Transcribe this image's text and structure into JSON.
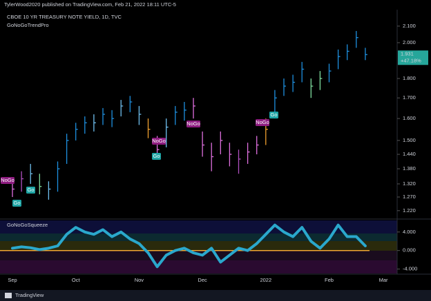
{
  "header": {
    "publisher": "TylerWood2020 published on TradingView.com, Feb 21, 2022 18:11 UTC-5",
    "footer": "TradingView"
  },
  "annotations": [
    "NoGo",
    "Go",
    "Go",
    "NoGo",
    "Go",
    "NoGo",
    "NoGo",
    "Go"
  ],
  "chart_data": [
    {
      "type": "ohlc",
      "title": "CBOE 10 YR TREASURY NOTE YIELD, 1D, TVC",
      "subtitle": "GoNoGoTrendPro",
      "categories": [
        "Sep",
        null,
        null,
        null,
        null,
        null,
        null,
        "Oct",
        null,
        null,
        null,
        null,
        null,
        null,
        "Nov",
        null,
        null,
        null,
        null,
        null,
        null,
        "Dec",
        null,
        null,
        null,
        null,
        null,
        null,
        "2022",
        null,
        null,
        null,
        null,
        null,
        null,
        "Feb",
        null,
        null,
        null,
        null,
        null,
        "Mar"
      ],
      "high": [
        1.34,
        1.37,
        1.4,
        1.36,
        1.33,
        1.41,
        1.53,
        1.58,
        1.61,
        1.62,
        1.65,
        1.64,
        1.69,
        1.71,
        1.66,
        1.6,
        1.52,
        1.6,
        1.66,
        1.68,
        1.7,
        1.54,
        1.49,
        1.54,
        1.49,
        1.46,
        1.49,
        1.52,
        1.6,
        1.74,
        1.8,
        1.82,
        1.89,
        1.8,
        1.84,
        1.88,
        1.96,
        1.99,
        2.07,
        1.97,
        null,
        null
      ],
      "low": [
        1.27,
        1.29,
        1.32,
        1.28,
        1.26,
        1.29,
        1.4,
        1.5,
        1.53,
        1.54,
        1.57,
        1.56,
        1.61,
        1.63,
        1.57,
        1.51,
        1.42,
        1.47,
        1.57,
        1.59,
        1.6,
        1.43,
        1.37,
        1.44,
        1.39,
        1.36,
        1.4,
        1.44,
        1.48,
        1.6,
        1.71,
        1.73,
        1.78,
        1.7,
        1.74,
        1.78,
        1.85,
        1.9,
        1.97,
        1.9,
        null,
        null
      ],
      "close": [
        1.3,
        1.34,
        1.36,
        1.31,
        1.3,
        1.38,
        1.5,
        1.55,
        1.58,
        1.58,
        1.62,
        1.6,
        1.66,
        1.68,
        1.62,
        1.55,
        1.46,
        1.56,
        1.63,
        1.64,
        1.66,
        1.48,
        1.43,
        1.5,
        1.44,
        1.42,
        1.45,
        1.48,
        1.55,
        1.7,
        1.76,
        1.78,
        1.85,
        1.76,
        1.8,
        1.84,
        1.92,
        1.95,
        2.03,
        1.931,
        null,
        null
      ],
      "bar_colors": [
        "#e070e0",
        "#b050c0",
        "#70c0f0",
        "#80e0a0",
        "#70c0f0",
        "#1e90e0",
        "#1e90e0",
        "#1e90e0",
        "#1e90e0",
        "#70c0f0",
        "#1e90e0",
        "#1e90e0",
        "#70c0f0",
        "#1e90e0",
        "#70c0f0",
        "#f0a030",
        "#e070e0",
        "#70c0f0",
        "#1e90e0",
        "#1e90e0",
        "#e070e0",
        "#e070e0",
        "#e070e0",
        "#e070e0",
        "#e070e0",
        "#b050c0",
        "#e070e0",
        "#e070e0",
        "#f0a030",
        "#1e90e0",
        "#1e90e0",
        "#1e90e0",
        "#1e90e0",
        "#80e0a0",
        "#80e0a0",
        "#1e90e0",
        "#1e90e0",
        "#1e90e0",
        "#1e90e0",
        "#1e90e0",
        null,
        null
      ],
      "log_scale": true,
      "ylim": [
        1.2,
        2.16
      ],
      "yticks": [
        {
          "value": 1.22,
          "label": "1.220"
        },
        {
          "value": 1.27,
          "label": "1.270"
        },
        {
          "value": 1.32,
          "label": "1.320"
        },
        {
          "value": 1.38,
          "label": "1.380"
        },
        {
          "value": 1.44,
          "label": "1.440"
        },
        {
          "value": 1.5,
          "label": "1.500"
        },
        {
          "value": 1.6,
          "label": "1.600"
        },
        {
          "value": 1.7,
          "label": "1.700"
        },
        {
          "value": 1.8,
          "label": "1.800"
        },
        {
          "value": 2.0,
          "label": "2.000"
        },
        {
          "value": 2.1,
          "label": "2.100"
        }
      ],
      "last_price": 1.931,
      "change_label": "+47.18%",
      "last_color": "#26a69a",
      "grid": false
    },
    {
      "type": "line",
      "title": "GoNoGoSqueeze",
      "color": "#2aa8cc",
      "zero_color": "#f0a830",
      "values": [
        0.5,
        0.8,
        0.6,
        0.2,
        0.5,
        1.0,
        3.5,
        5.0,
        4.0,
        3.5,
        4.5,
        3.0,
        4.0,
        2.5,
        1.5,
        -0.5,
        -3.5,
        -1.0,
        0.0,
        0.5,
        -0.5,
        -1.0,
        0.5,
        -2.5,
        -1.0,
        0.5,
        0.0,
        1.5,
        3.5,
        5.5,
        4.0,
        3.0,
        5.0,
        2.0,
        0.5,
        2.5,
        5.5,
        3.0,
        3.0,
        1.0,
        null,
        null
      ],
      "ylim": [
        -4.8,
        6.8
      ],
      "yticks": [
        {
          "value": -4,
          "label": "-4.000"
        },
        {
          "value": 0,
          "label": "0.000"
        },
        {
          "value": 4,
          "label": "4.000"
        }
      ],
      "grid": false
    }
  ]
}
